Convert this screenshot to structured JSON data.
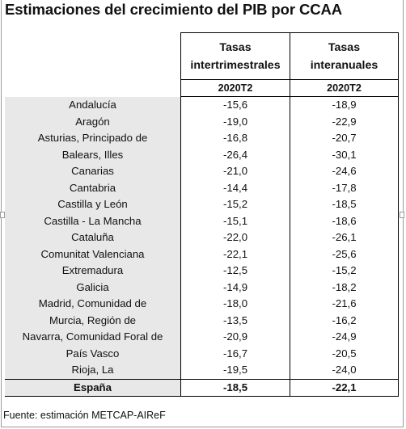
{
  "title": "Estimaciones del crecimiento del PIB por CCAA",
  "header": {
    "col1": [
      "Tasas",
      "intertrimestrales"
    ],
    "col2": [
      "Tasas",
      "interanuales"
    ],
    "period1": "2020T2",
    "period2": "2020T2"
  },
  "rows": [
    {
      "region": "Andalucía",
      "qoq": "-15,6",
      "yoy": "-18,9"
    },
    {
      "region": "Aragón",
      "qoq": "-19,0",
      "yoy": "-22,9"
    },
    {
      "region": "Asturias, Principado de",
      "qoq": "-16,8",
      "yoy": "-20,7"
    },
    {
      "region": "Balears, Illes",
      "qoq": "-26,4",
      "yoy": "-30,1"
    },
    {
      "region": "Canarias",
      "qoq": "-21,0",
      "yoy": "-24,6"
    },
    {
      "region": "Cantabria",
      "qoq": "-14,4",
      "yoy": "-17,8"
    },
    {
      "region": "Castilla y León",
      "qoq": "-15,2",
      "yoy": "-18,5"
    },
    {
      "region": "Castilla - La Mancha",
      "qoq": "-15,1",
      "yoy": "-18,6"
    },
    {
      "region": "Cataluña",
      "qoq": "-22,0",
      "yoy": "-26,1"
    },
    {
      "region": "Comunitat Valenciana",
      "qoq": "-22,1",
      "yoy": "-25,6"
    },
    {
      "region": "Extremadura",
      "qoq": "-12,5",
      "yoy": "-15,2"
    },
    {
      "region": "Galicia",
      "qoq": "-14,9",
      "yoy": "-18,2"
    },
    {
      "region": "Madrid, Comunidad de",
      "qoq": "-18,0",
      "yoy": "-21,6"
    },
    {
      "region": "Murcia, Región de",
      "qoq": "-13,5",
      "yoy": "-16,2"
    },
    {
      "region": "Navarra, Comunidad Foral de",
      "qoq": "-20,9",
      "yoy": "-24,9"
    },
    {
      "region": "País Vasco",
      "qoq": "-16,7",
      "yoy": "-20,5"
    },
    {
      "region": "Rioja, La",
      "qoq": "-19,5",
      "yoy": "-24,0"
    }
  ],
  "total": {
    "region": "España",
    "qoq": "-18,5",
    "yoy": "-22,1"
  },
  "source": "Fuente: estimación METCAP-AIReF"
}
